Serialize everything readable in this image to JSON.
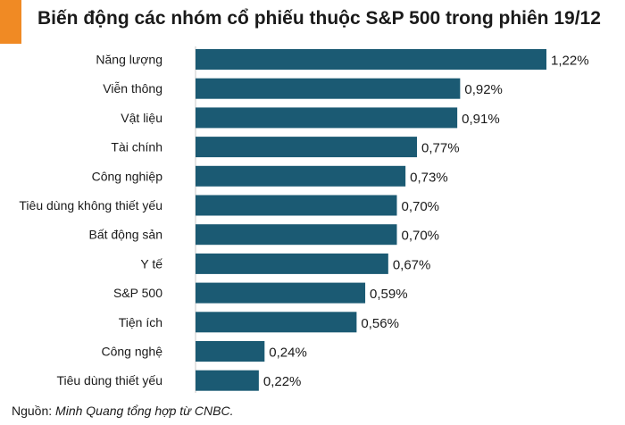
{
  "colors": {
    "accent": "#f08a24",
    "bar": "#1b5a73",
    "axis": "#c8c8c8"
  },
  "source": {
    "label": "Nguồn:",
    "text": "Minh Quang tổng hợp từ CNBC."
  },
  "chart_data": {
    "type": "bar",
    "orientation": "horizontal",
    "title": "Biến động các nhóm cổ phiếu thuộc S&P 500 trong phiên 19/12",
    "xlabel": "",
    "ylabel": "",
    "unit": "%",
    "xlim": [
      0,
      1.22
    ],
    "grid": false,
    "categories": [
      "Năng lượng",
      "Viễn thông",
      "Vật liệu",
      "Tài chính",
      "Công nghiệp",
      "Tiêu dùng không thiết yếu",
      "Bất động sản",
      "Y tế",
      "S&P 500",
      "Tiện ích",
      "Công nghệ",
      "Tiêu dùng thiết yếu"
    ],
    "values": [
      1.22,
      0.92,
      0.91,
      0.77,
      0.73,
      0.7,
      0.7,
      0.67,
      0.59,
      0.56,
      0.24,
      0.22
    ],
    "value_labels": [
      "1,22%",
      "0,92%",
      "0,91%",
      "0,77%",
      "0,73%",
      "0,70%",
      "0,70%",
      "0,67%",
      "0,59%",
      "0,56%",
      "0,24%",
      "0,22%"
    ]
  }
}
